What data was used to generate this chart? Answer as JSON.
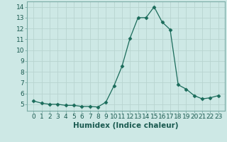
{
  "xlabel": "Humidex (Indice chaleur)",
  "x": [
    0,
    1,
    2,
    3,
    4,
    5,
    6,
    7,
    8,
    9,
    10,
    11,
    12,
    13,
    14,
    15,
    16,
    17,
    18,
    19,
    20,
    21,
    22,
    23
  ],
  "y": [
    5.3,
    5.1,
    5.0,
    5.0,
    4.9,
    4.9,
    4.8,
    4.8,
    4.75,
    5.2,
    6.7,
    8.5,
    11.1,
    13.0,
    13.0,
    14.0,
    12.6,
    11.9,
    6.8,
    6.4,
    5.8,
    5.5,
    5.6,
    5.8
  ],
  "ylim": [
    4.4,
    14.5
  ],
  "yticks": [
    5,
    6,
    7,
    8,
    9,
    10,
    11,
    12,
    13,
    14
  ],
  "line_color": "#1a6b5a",
  "marker": "D",
  "marker_size": 2.5,
  "bg_color": "#cde8e5",
  "grid_color": "#b8d4d0",
  "label_color": "#1a5a50",
  "tick_label_fontsize": 6.5,
  "xlabel_fontsize": 7.5
}
